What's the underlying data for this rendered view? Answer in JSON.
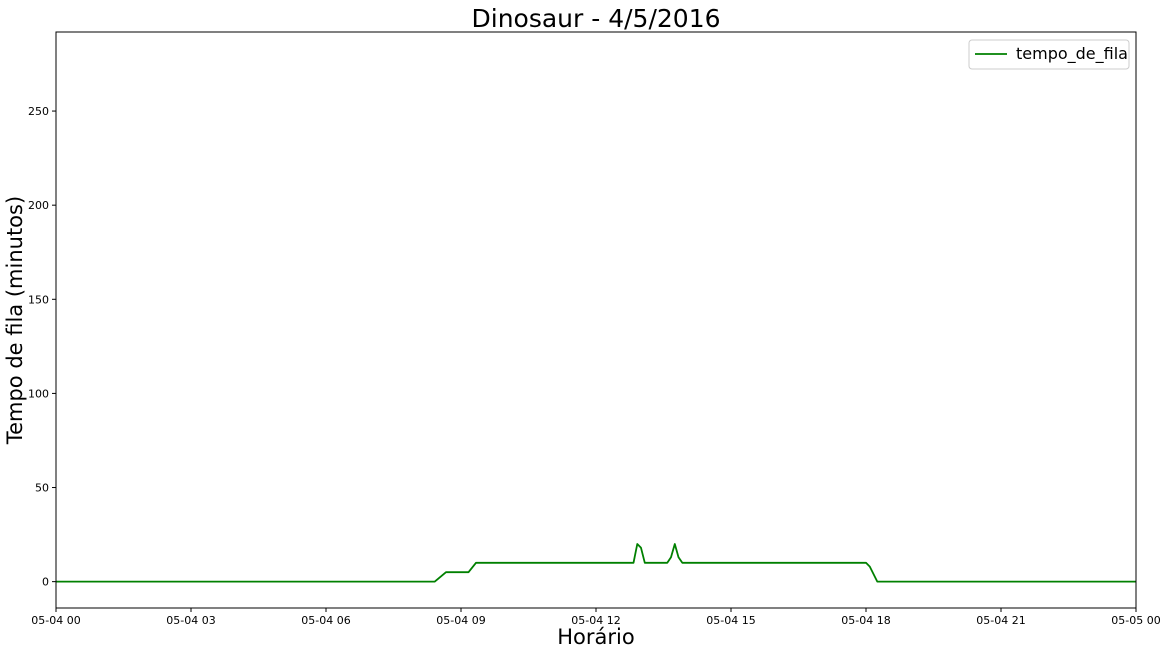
{
  "chart_data": {
    "type": "line",
    "title": "Dinosaur - 4/5/2016",
    "xlabel": "Horário",
    "ylabel": "Tempo de fila (minutos)",
    "xlim": [
      "2016-05-04 00:00",
      "2016-05-05 00:00"
    ],
    "ylim": [
      -14,
      292
    ],
    "x_ticks": [
      "2016-05-04 00:00",
      "2016-05-04 03:00",
      "2016-05-04 06:00",
      "2016-05-04 09:00",
      "2016-05-04 12:00",
      "2016-05-04 15:00",
      "2016-05-04 18:00",
      "2016-05-04 21:00",
      "2016-05-05 00:00"
    ],
    "x_tick_labels": [
      "05-04 00",
      "05-04 03",
      "05-04 06",
      "05-04 09",
      "05-04 12",
      "05-04 15",
      "05-04 18",
      "05-04 21",
      "05-05 00"
    ],
    "y_ticks": [
      0,
      50,
      100,
      150,
      200,
      250
    ],
    "y_tick_labels": [
      "0",
      "50",
      "100",
      "150",
      "200",
      "250"
    ],
    "grid": false,
    "legend": "top-right",
    "series": [
      {
        "name": "tempo_de_fila",
        "color": "#008000",
        "x": [
          "2016-05-04 00:00",
          "2016-05-04 08:25",
          "2016-05-04 08:40",
          "2016-05-04 08:55",
          "2016-05-04 09:10",
          "2016-05-04 09:20",
          "2016-05-04 12:50",
          "2016-05-04 12:55",
          "2016-05-04 13:00",
          "2016-05-04 13:05",
          "2016-05-04 13:35",
          "2016-05-04 13:40",
          "2016-05-04 13:45",
          "2016-05-04 13:50",
          "2016-05-04 13:55",
          "2016-05-04 17:55",
          "2016-05-04 18:00",
          "2016-05-04 18:05",
          "2016-05-04 18:15",
          "2016-05-05 00:00"
        ],
        "y": [
          0,
          0,
          5,
          5,
          5,
          10,
          10,
          20,
          18,
          10,
          10,
          13,
          20,
          13,
          10,
          10,
          10,
          8,
          0,
          0
        ]
      }
    ]
  }
}
